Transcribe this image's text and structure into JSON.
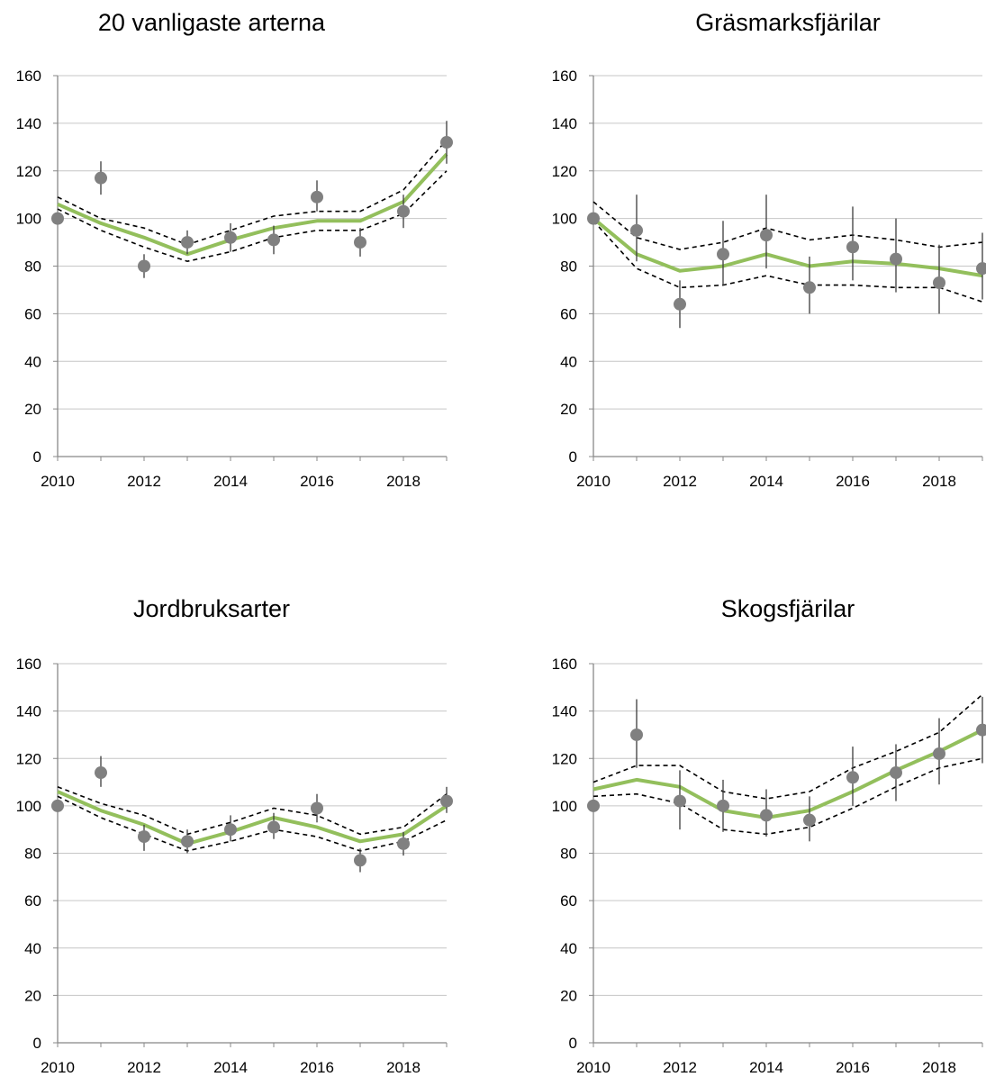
{
  "chart_data": [
    {
      "type": "line",
      "title": "20 vanligaste arterna",
      "x": [
        2010,
        2011,
        2012,
        2013,
        2014,
        2015,
        2016,
        2017,
        2018,
        2019
      ],
      "xticks": [
        2010,
        2012,
        2014,
        2016,
        2018
      ],
      "xlim": [
        2010,
        2019
      ],
      "ylim": [
        0,
        160
      ],
      "yticks": [
        0,
        20,
        40,
        60,
        80,
        100,
        120,
        140,
        160
      ],
      "grid": true,
      "series": [
        {
          "role": "trend",
          "color": "#93bf5c",
          "values": [
            106,
            98,
            92,
            85,
            91,
            96,
            99,
            99,
            107,
            127
          ]
        },
        {
          "role": "ci_upper",
          "values": [
            109,
            100,
            96,
            89,
            95,
            101,
            103,
            103,
            112,
            133
          ]
        },
        {
          "role": "ci_lower",
          "values": [
            104,
            95,
            88,
            82,
            86,
            92,
            95,
            95,
            102,
            120
          ]
        },
        {
          "role": "observed",
          "color": "#808080",
          "values": [
            100,
            117,
            80,
            90,
            92,
            91,
            109,
            90,
            103,
            132
          ],
          "err_low": [
            100,
            110,
            75,
            85,
            86,
            85,
            103,
            84,
            96,
            123
          ],
          "err_high": [
            100,
            124,
            85,
            95,
            98,
            97,
            116,
            96,
            110,
            141
          ]
        }
      ]
    },
    {
      "type": "line",
      "title": "Gräsmarksfjärilar",
      "x": [
        2010,
        2011,
        2012,
        2013,
        2014,
        2015,
        2016,
        2017,
        2018,
        2019
      ],
      "xticks": [
        2010,
        2012,
        2014,
        2016,
        2018
      ],
      "xlim": [
        2010,
        2019
      ],
      "ylim": [
        0,
        160
      ],
      "yticks": [
        0,
        20,
        40,
        60,
        80,
        100,
        120,
        140,
        160
      ],
      "grid": true,
      "series": [
        {
          "role": "trend",
          "color": "#93bf5c",
          "values": [
            100,
            85,
            78,
            80,
            85,
            80,
            82,
            81,
            79,
            76
          ]
        },
        {
          "role": "ci_upper",
          "values": [
            107,
            92,
            87,
            90,
            96,
            91,
            93,
            91,
            88,
            90
          ]
        },
        {
          "role": "ci_lower",
          "values": [
            99,
            79,
            71,
            72,
            76,
            72,
            72,
            71,
            71,
            65
          ]
        },
        {
          "role": "observed",
          "color": "#808080",
          "values": [
            100,
            95,
            64,
            85,
            93,
            71,
            88,
            83,
            73,
            79
          ],
          "err_low": [
            100,
            82,
            54,
            72,
            79,
            60,
            74,
            69,
            60,
            66
          ],
          "err_high": [
            100,
            110,
            74,
            99,
            110,
            84,
            105,
            100,
            89,
            94
          ]
        }
      ]
    },
    {
      "type": "line",
      "title": "Jordbruksarter",
      "x": [
        2010,
        2011,
        2012,
        2013,
        2014,
        2015,
        2016,
        2017,
        2018,
        2019
      ],
      "xticks": [
        2010,
        2012,
        2014,
        2016,
        2018
      ],
      "xlim": [
        2010,
        2019
      ],
      "ylim": [
        0,
        160
      ],
      "yticks": [
        0,
        20,
        40,
        60,
        80,
        100,
        120,
        140,
        160
      ],
      "grid": true,
      "series": [
        {
          "role": "trend",
          "color": "#93bf5c",
          "values": [
            106,
            98,
            92,
            84,
            89,
            95,
            91,
            85,
            88,
            100
          ]
        },
        {
          "role": "ci_upper",
          "values": [
            108,
            101,
            96,
            88,
            93,
            99,
            96,
            88,
            91,
            105
          ]
        },
        {
          "role": "ci_lower",
          "values": [
            104,
            95,
            88,
            81,
            85,
            90,
            87,
            81,
            85,
            94
          ]
        },
        {
          "role": "observed",
          "color": "#808080",
          "values": [
            100,
            114,
            87,
            85,
            90,
            91,
            99,
            77,
            84,
            102
          ],
          "err_low": [
            100,
            108,
            81,
            80,
            85,
            86,
            93,
            72,
            79,
            97
          ],
          "err_high": [
            100,
            121,
            92,
            90,
            96,
            97,
            105,
            82,
            89,
            108
          ]
        }
      ]
    },
    {
      "type": "line",
      "title": "Skogsfjärilar",
      "x": [
        2010,
        2011,
        2012,
        2013,
        2014,
        2015,
        2016,
        2017,
        2018,
        2019
      ],
      "xticks": [
        2010,
        2012,
        2014,
        2016,
        2018
      ],
      "xlim": [
        2010,
        2019
      ],
      "ylim": [
        0,
        160
      ],
      "yticks": [
        0,
        20,
        40,
        60,
        80,
        100,
        120,
        140,
        160
      ],
      "grid": true,
      "series": [
        {
          "role": "trend",
          "color": "#93bf5c",
          "values": [
            107,
            111,
            108,
            98,
            95,
            98,
            106,
            115,
            123,
            132
          ]
        },
        {
          "role": "ci_upper",
          "values": [
            110,
            117,
            117,
            106,
            103,
            106,
            116,
            123,
            131,
            147
          ]
        },
        {
          "role": "ci_lower",
          "values": [
            104,
            105,
            101,
            90,
            88,
            91,
            99,
            108,
            116,
            120
          ]
        },
        {
          "role": "observed",
          "color": "#808080",
          "values": [
            100,
            130,
            102,
            100,
            96,
            94,
            112,
            114,
            122,
            132
          ],
          "err_low": [
            100,
            116,
            90,
            89,
            87,
            85,
            100,
            102,
            109,
            118
          ],
          "err_high": [
            100,
            145,
            115,
            111,
            107,
            104,
            125,
            126,
            137,
            146
          ]
        }
      ]
    }
  ]
}
